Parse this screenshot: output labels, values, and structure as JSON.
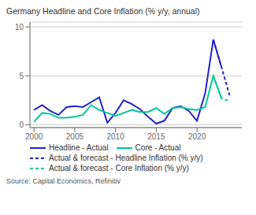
{
  "chart_data": {
    "type": "line",
    "title": "Germany Headline and Core Inflation (% y/y, annual)",
    "source": "Source: Capital Economics, Refinitiv",
    "x": [
      2000,
      2001,
      2002,
      2003,
      2004,
      2005,
      2006,
      2007,
      2008,
      2009,
      2010,
      2011,
      2012,
      2013,
      2014,
      2015,
      2016,
      2017,
      2018,
      2019,
      2020,
      2021,
      2022,
      2023,
      2024
    ],
    "series": [
      {
        "name": "Headline - Actual",
        "color": "#2222cc",
        "line_style": "solid",
        "values": [
          1.5,
          2.0,
          1.4,
          1.0,
          1.8,
          1.9,
          1.8,
          2.3,
          2.8,
          0.2,
          1.2,
          2.5,
          2.1,
          1.6,
          0.8,
          0.1,
          0.4,
          1.7,
          1.9,
          1.4,
          0.4,
          3.2,
          8.7,
          5.9,
          null
        ]
      },
      {
        "name": "Core - Actual",
        "color": "#00c896",
        "line_style": "solid",
        "values": [
          0.3,
          1.2,
          1.1,
          0.7,
          0.7,
          0.8,
          1.0,
          2.0,
          1.5,
          1.2,
          0.9,
          1.2,
          1.5,
          1.3,
          1.3,
          1.7,
          1.1,
          1.7,
          1.8,
          1.6,
          1.5,
          1.8,
          5.0,
          2.7,
          null
        ]
      },
      {
        "name": "Actual & forecast - Headline Inflation (% y/y)",
        "color": "#2222cc",
        "line_style": "dashed",
        "values": [
          null,
          null,
          null,
          null,
          null,
          null,
          null,
          null,
          null,
          null,
          null,
          null,
          null,
          null,
          null,
          null,
          null,
          null,
          null,
          null,
          null,
          null,
          8.7,
          5.9,
          3.0
        ]
      },
      {
        "name": "Actual & forecast - Core Inflation (% y/y)",
        "color": "#00c896",
        "line_style": "dashed",
        "values": [
          null,
          null,
          null,
          null,
          null,
          null,
          null,
          null,
          null,
          null,
          null,
          null,
          null,
          null,
          null,
          null,
          null,
          null,
          null,
          null,
          null,
          null,
          5.0,
          2.7,
          2.4
        ]
      }
    ],
    "xlim": [
      1999.5,
      2025.5
    ],
    "xticks": [
      2000,
      2005,
      2010,
      2015,
      2020
    ],
    "ylim": [
      -0.3,
      10.5
    ],
    "yticks": [
      0,
      5,
      10
    ],
    "grid": "y",
    "legend": "bottom"
  }
}
